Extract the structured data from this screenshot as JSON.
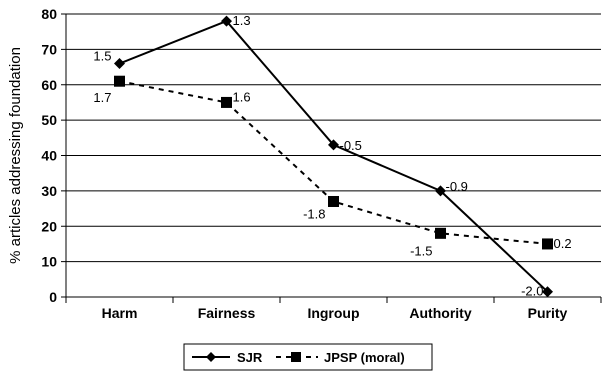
{
  "chart_data": {
    "type": "line",
    "categories": [
      "Harm",
      "Fairness",
      "Ingroup",
      "Authority",
      "Purity"
    ],
    "ylabel": "% articles addressing foundation",
    "xlabel": "",
    "ylim": [
      0,
      80
    ],
    "yticks": [
      "0",
      "10",
      "20",
      "30",
      "40",
      "50",
      "60",
      "70",
      "80"
    ],
    "grid": true,
    "legend_position": "bottom",
    "series": [
      {
        "name": "SJR",
        "values": [
          66,
          78,
          43,
          30,
          1.5
        ],
        "labels": [
          "1.5",
          "1.3",
          "-0.5",
          "-0.9",
          "-2.0"
        ],
        "style": "solid",
        "marker": "diamond",
        "color": "#000000"
      },
      {
        "name": "JPSP (moral)",
        "values": [
          61,
          55,
          27,
          18,
          15
        ],
        "labels": [
          "1.7",
          "1.6",
          "-1.8",
          "-1.5",
          "0.2"
        ],
        "style": "dashed",
        "marker": "square",
        "color": "#000000"
      }
    ]
  }
}
